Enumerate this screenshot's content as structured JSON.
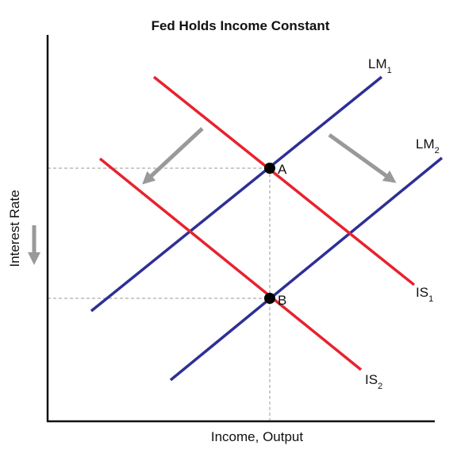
{
  "title": "Fed Holds Income Constant",
  "x_axis_label": "Income, Output",
  "y_axis_label": "Interest Rate",
  "curves": {
    "lm1": {
      "name": "LM",
      "sub": "1"
    },
    "lm2": {
      "name": "LM",
      "sub": "2"
    },
    "is1": {
      "name": "IS",
      "sub": "1"
    },
    "is2": {
      "name": "IS",
      "sub": "2"
    }
  },
  "points": {
    "a": "A",
    "b": "B"
  },
  "colors": {
    "lm": "#2e2f95",
    "is": "#e8222e",
    "arrow": "#999999",
    "axis": "#111111",
    "guide": "#9a9a9a",
    "point": "#000000"
  },
  "icons": {
    "shift_left": "arrow-down-left-icon",
    "shift_right": "arrow-down-right-icon",
    "rate_falls": "arrow-down-icon"
  }
}
